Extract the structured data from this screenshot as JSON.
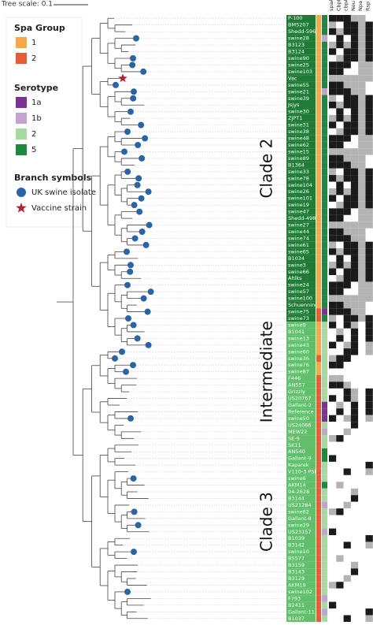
{
  "tree_scale": "Tree scale: 0.1",
  "legend": {
    "spa": {
      "title": "Spa Group",
      "items": [
        {
          "label": "1",
          "color": "#f5a74a"
        },
        {
          "label": "2",
          "color": "#ea5a36"
        }
      ]
    },
    "serotype": {
      "title": "Serotype",
      "items": [
        {
          "label": "1a",
          "color": "#7b3294"
        },
        {
          "label": "1b",
          "color": "#c2a5cf"
        },
        {
          "label": "2",
          "color": "#a6dba0"
        },
        {
          "label": "5",
          "color": "#1b8a3c"
        }
      ]
    },
    "branch": {
      "title": "Branch symbols",
      "items": [
        {
          "label": "UK swine isolate",
          "color": "#2a64a8"
        },
        {
          "label": "Vaccine strain",
          "color": "#b52233"
        }
      ]
    }
  },
  "columns": [
    "spaA",
    "CbpB",
    "cbpA",
    "Neu",
    "Npa",
    "Rsp"
  ],
  "clades": [
    {
      "label": "Clade 2",
      "color": "#1f7a36",
      "first": 0,
      "last": 45
    },
    {
      "label": "Intermediate",
      "color": "#5fbf6a",
      "first": 46,
      "last": 60
    },
    {
      "label": "Clade 3",
      "color": "#5fbf6a",
      "first": 61,
      "last": 90
    }
  ],
  "leaves": [
    {
      "label": "P-100",
      "spa": 0,
      "sero": 3
    },
    {
      "label": "BM5207",
      "spa": 0,
      "sero": 3
    },
    {
      "label": "Shedd-5969",
      "spa": 0,
      "sero": 3
    },
    {
      "label": "swine28",
      "spa": 0,
      "sero": 1,
      "symbol": 0
    },
    {
      "label": "B3123",
      "spa": 0,
      "sero": 3
    },
    {
      "label": "B3124",
      "spa": 0,
      "sero": 3
    },
    {
      "label": "swine90",
      "spa": 0,
      "sero": 3,
      "symbol": 0
    },
    {
      "label": "swine25",
      "spa": 0,
      "sero": 3,
      "symbol": 0
    },
    {
      "label": "swine103",
      "spa": 0,
      "sero": 3,
      "symbol": 0
    },
    {
      "label": "Vac",
      "spa": 0,
      "sero": 3,
      "symbol": 1
    },
    {
      "label": "swine55",
      "spa": 0,
      "sero": 3,
      "symbol": 0
    },
    {
      "label": "swine21",
      "spa": 0,
      "sero": 1,
      "symbol": 0
    },
    {
      "label": "swine39",
      "spa": 0,
      "sero": 3,
      "symbol": 0
    },
    {
      "label": "Jsjys",
      "spa": 0,
      "sero": 3
    },
    {
      "label": "swine30",
      "spa": 0,
      "sero": 3,
      "symbol": 0
    },
    {
      "label": "ZJPT1",
      "spa": 0,
      "sero": 3
    },
    {
      "label": "swine31",
      "spa": 0,
      "sero": 3,
      "symbol": 0
    },
    {
      "label": "swine38",
      "spa": 0,
      "sero": 3,
      "symbol": 0
    },
    {
      "label": "swine48",
      "spa": 0,
      "sero": 3,
      "symbol": 0
    },
    {
      "label": "swine62",
      "spa": 0,
      "sero": 3,
      "symbol": 0
    },
    {
      "label": "swine15",
      "spa": 0,
      "sero": 3,
      "symbol": 0
    },
    {
      "label": "swine89",
      "spa": 0,
      "sero": 3,
      "symbol": 0
    },
    {
      "label": "B1364",
      "spa": 0,
      "sero": 3
    },
    {
      "label": "swine33",
      "spa": 0,
      "sero": 3,
      "symbol": 0
    },
    {
      "label": "swine78",
      "spa": 0,
      "sero": 3,
      "symbol": 0
    },
    {
      "label": "swine104",
      "spa": 0,
      "sero": 3,
      "symbol": 0
    },
    {
      "label": "swine26",
      "spa": 0,
      "sero": 3,
      "symbol": 0
    },
    {
      "label": "swine101",
      "spa": 0,
      "sero": 3,
      "symbol": 0
    },
    {
      "label": "swine19",
      "spa": 0,
      "sero": 3,
      "symbol": 0
    },
    {
      "label": "swine47",
      "spa": 0,
      "sero": 3,
      "symbol": 0
    },
    {
      "label": "Shedd-4987",
      "spa": 0,
      "sero": 3
    },
    {
      "label": "swine27",
      "spa": 0,
      "sero": 3,
      "symbol": 0
    },
    {
      "label": "swine44",
      "spa": 0,
      "sero": 3,
      "symbol": 0
    },
    {
      "label": "swine74",
      "spa": 0,
      "sero": 3,
      "symbol": 0
    },
    {
      "label": "swine61",
      "spa": 0,
      "sero": 3,
      "symbol": 0
    },
    {
      "label": "swine65",
      "spa": 0,
      "sero": 3,
      "symbol": 0
    },
    {
      "label": "B1034",
      "spa": 0,
      "sero": 3
    },
    {
      "label": "swine3",
      "spa": 0,
      "sero": 3,
      "symbol": 0
    },
    {
      "label": "swine66",
      "spa": 0,
      "sero": 3,
      "symbol": 0
    },
    {
      "label": "Ahlks",
      "spa": 0,
      "sero": 3
    },
    {
      "label": "swine24",
      "spa": 0,
      "sero": 3,
      "symbol": 0
    },
    {
      "label": "swine57",
      "spa": 0,
      "sero": 3,
      "symbol": 0
    },
    {
      "label": "swine100",
      "spa": 0,
      "sero": 3,
      "symbol": 0
    },
    {
      "label": "Schuenning",
      "spa": 0,
      "sero": 3
    },
    {
      "label": "swine75",
      "spa": 1,
      "sero": 0,
      "symbol": 0
    },
    {
      "label": "swine73",
      "spa": 1,
      "sero": 3,
      "symbol": 0
    },
    {
      "label": "swine9",
      "spa": 0,
      "sero": 2,
      "symbol": 0
    },
    {
      "label": "B1041",
      "spa": 0,
      "sero": 2
    },
    {
      "label": "swine13",
      "spa": 0,
      "sero": 2,
      "symbol": 0
    },
    {
      "label": "swine43",
      "spa": 0,
      "sero": 2,
      "symbol": 0
    },
    {
      "label": "swine60",
      "spa": 0,
      "sero": 2,
      "symbol": 0
    },
    {
      "label": "swine36",
      "spa": 1,
      "sero": 2,
      "symbol": 0
    },
    {
      "label": "swine76",
      "spa": 0,
      "sero": 2,
      "symbol": 0
    },
    {
      "label": "swine87",
      "spa": 0,
      "sero": 2,
      "symbol": 0
    },
    {
      "label": "F446",
      "spa": 1,
      "sero": 2
    },
    {
      "label": "AN557",
      "spa": 1,
      "sero": 2
    },
    {
      "label": "Grizzly",
      "spa": 1,
      "sero": 2
    },
    {
      "label": "US20767",
      "spa": 1,
      "sero": 2
    },
    {
      "label": "Gallant-2",
      "spa": 1,
      "sero": 0
    },
    {
      "label": "Reference",
      "spa": 1,
      "sero": 0
    },
    {
      "label": "swine50",
      "spa": 1,
      "sero": 0,
      "symbol": 0
    },
    {
      "label": "US24066",
      "spa": 1,
      "sero": 2
    },
    {
      "label": "MEW22",
      "spa": 1,
      "sero": 1
    },
    {
      "label": "SE-9",
      "spa": 1,
      "sero": 2
    },
    {
      "label": "SK11",
      "spa": 1,
      "sero": 2
    },
    {
      "label": "AN540",
      "spa": 1,
      "sero": 3
    },
    {
      "label": "Gallant-9",
      "spa": 1,
      "sero": 3
    },
    {
      "label": "Kaparek",
      "spa": 1,
      "sero": 2
    },
    {
      "label": "V110-3 PSLN",
      "spa": 1,
      "sero": 2
    },
    {
      "label": "swine6",
      "spa": 1,
      "sero": 2,
      "symbol": 0
    },
    {
      "label": "AKM14",
      "spa": 1,
      "sero": 3
    },
    {
      "label": "94-2628",
      "spa": 1,
      "sero": 2
    },
    {
      "label": "B3144",
      "spa": 1,
      "sero": 2
    },
    {
      "label": "US21284",
      "spa": 1,
      "sero": 1
    },
    {
      "label": "swine82",
      "spa": 1,
      "sero": 2,
      "symbol": 0
    },
    {
      "label": "Gallant-8",
      "spa": 1,
      "sero": 2
    },
    {
      "label": "swine29",
      "spa": 1,
      "sero": 2,
      "symbol": 0
    },
    {
      "label": "US23157",
      "spa": 1,
      "sero": 1
    },
    {
      "label": "B1039",
      "spa": 1,
      "sero": 2
    },
    {
      "label": "B3142",
      "spa": 1,
      "sero": 2
    },
    {
      "label": "swine10",
      "spa": 1,
      "sero": 2,
      "symbol": 0
    },
    {
      "label": "B5577",
      "spa": 1,
      "sero": 2
    },
    {
      "label": "B3159",
      "spa": 1,
      "sero": 2
    },
    {
      "label": "B3143",
      "spa": 1,
      "sero": 2
    },
    {
      "label": "B3129",
      "spa": 1,
      "sero": 2
    },
    {
      "label": "AKM19",
      "spa": 1,
      "sero": 2
    },
    {
      "label": "swine102",
      "spa": 1,
      "sero": 2,
      "symbol": 0
    },
    {
      "label": "F793",
      "spa": 1,
      "sero": 1
    },
    {
      "label": "B2411",
      "spa": 1,
      "sero": 2
    },
    {
      "label": "Gallant-11",
      "spa": 1,
      "sero": 1
    },
    {
      "label": "B1037",
      "spa": 1,
      "sero": 2
    }
  ]
}
